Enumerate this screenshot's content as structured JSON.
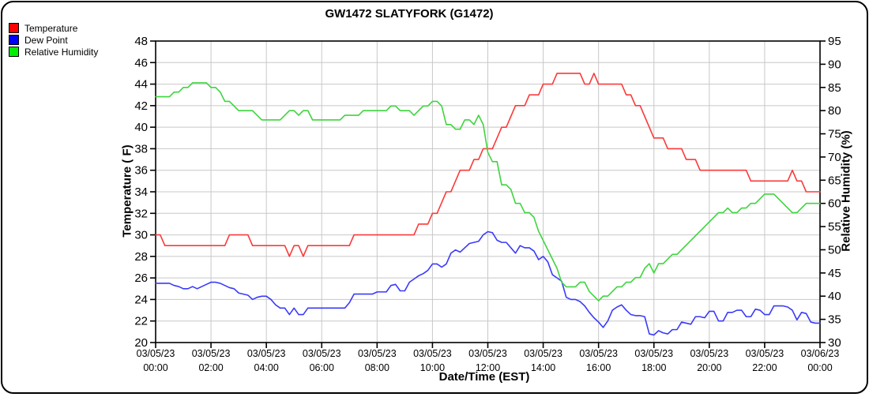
{
  "title": "GW1472 SLATYFORK (G1472)",
  "chart_data": {
    "type": "line",
    "title": "GW1472 SLATYFORK (G1472)",
    "xlabel": "Date/Time (EST)",
    "x_start": "03/05/23 00:00",
    "x_end": "03/06/23 00:00",
    "sample_interval_minutes": 10,
    "grid": true,
    "legend_position": "top-left",
    "left_axis": {
      "label": "Temperature ( F)",
      "min": 20,
      "max": 48,
      "tick_step": 2
    },
    "right_axis": {
      "label": "Relative Humidity (%)",
      "min": 30,
      "max": 95,
      "tick_step": 5
    },
    "x_ticks": [
      {
        "date": "03/05/23",
        "time": "00:00"
      },
      {
        "date": "03/05/23",
        "time": "02:00"
      },
      {
        "date": "03/05/23",
        "time": "04:00"
      },
      {
        "date": "03/05/23",
        "time": "06:00"
      },
      {
        "date": "03/05/23",
        "time": "08:00"
      },
      {
        "date": "03/05/23",
        "time": "10:00"
      },
      {
        "date": "03/05/23",
        "time": "12:00"
      },
      {
        "date": "03/05/23",
        "time": "14:00"
      },
      {
        "date": "03/05/23",
        "time": "16:00"
      },
      {
        "date": "03/05/23",
        "time": "18:00"
      },
      {
        "date": "03/05/23",
        "time": "20:00"
      },
      {
        "date": "03/05/23",
        "time": "22:00"
      },
      {
        "date": "03/06/23",
        "time": "00:00"
      }
    ],
    "series": [
      {
        "name": "Temperature",
        "axis": "left",
        "swatch_color": "#ff0000",
        "line_color": "#fa3a3a",
        "values": [
          30,
          30,
          29,
          29,
          29,
          29,
          29,
          29,
          29,
          29,
          29,
          29,
          29,
          29,
          29,
          29,
          30,
          30,
          30,
          30,
          30,
          29,
          29,
          29,
          29,
          29,
          29,
          29,
          29,
          28,
          29,
          29,
          28,
          29,
          29,
          29,
          29,
          29,
          29,
          29,
          29,
          29,
          29,
          30,
          30,
          30,
          30,
          30,
          30,
          30,
          30,
          30,
          30,
          30,
          30,
          30,
          30,
          31,
          31,
          31,
          32,
          32,
          33,
          34,
          34,
          35,
          36,
          36,
          36,
          37,
          37,
          38,
          38,
          38,
          39,
          40,
          40,
          41,
          42,
          42,
          42,
          43,
          43,
          43,
          44,
          44,
          44,
          45,
          45,
          45,
          45,
          45,
          45,
          44,
          44,
          45,
          44,
          44,
          44,
          44,
          44,
          44,
          43,
          43,
          42,
          42,
          41,
          40,
          39,
          39,
          39,
          38,
          38,
          38,
          38,
          37,
          37,
          37,
          36,
          36,
          36,
          36,
          36,
          36,
          36,
          36,
          36,
          36,
          36,
          35,
          35,
          35,
          35,
          35,
          35,
          35,
          35,
          35,
          36,
          35,
          35,
          34,
          34,
          34,
          34
        ]
      },
      {
        "name": "Dew Point",
        "axis": "left",
        "swatch_color": "#0000ff",
        "line_color": "#3a3afa",
        "values": [
          25.5,
          25.5,
          25.5,
          25.5,
          25.3,
          25.2,
          25.0,
          25.0,
          25.2,
          25.0,
          25.2,
          25.4,
          25.6,
          25.6,
          25.5,
          25.3,
          25.1,
          25.0,
          24.6,
          24.5,
          24.4,
          24.0,
          24.2,
          24.3,
          24.3,
          24.0,
          23.5,
          23.2,
          23.2,
          22.6,
          23.2,
          22.6,
          22.6,
          23.2,
          23.2,
          23.2,
          23.2,
          23.2,
          23.2,
          23.2,
          23.2,
          23.2,
          23.7,
          24.5,
          24.5,
          24.5,
          24.5,
          24.5,
          24.7,
          24.7,
          24.7,
          25.3,
          25.4,
          24.8,
          24.8,
          25.6,
          25.9,
          26.2,
          26.4,
          26.7,
          27.3,
          27.3,
          27.0,
          27.3,
          28.3,
          28.6,
          28.4,
          28.8,
          29.2,
          29.3,
          29.4,
          30.0,
          30.3,
          30.2,
          29.5,
          29.3,
          29.3,
          28.8,
          28.3,
          29.0,
          28.8,
          28.8,
          28.5,
          27.7,
          28.0,
          27.5,
          26.3,
          26.0,
          25.7,
          24.2,
          24.0,
          24.0,
          23.8,
          23.4,
          22.8,
          22.3,
          21.9,
          21.4,
          22.0,
          23.0,
          23.3,
          23.5,
          23.0,
          22.6,
          22.5,
          22.5,
          22.4,
          20.8,
          20.7,
          21.1,
          20.9,
          20.8,
          21.2,
          21.2,
          21.9,
          21.8,
          21.7,
          22.4,
          22.4,
          22.3,
          22.9,
          22.9,
          22.0,
          22.0,
          22.8,
          22.8,
          23.0,
          23.0,
          22.4,
          22.4,
          23.1,
          23.0,
          22.6,
          22.6,
          23.4,
          23.4,
          23.4,
          23.3,
          23.0,
          22.1,
          22.8,
          22.7,
          21.9,
          21.8,
          21.8
        ]
      },
      {
        "name": "Relative Humidity",
        "axis": "right",
        "swatch_color": "#00ee00",
        "line_color": "#3fd43f",
        "values": [
          83,
          83,
          83,
          83,
          84,
          84,
          85,
          85,
          86,
          86,
          86,
          86,
          85,
          85,
          84,
          82,
          82,
          81,
          80,
          80,
          80,
          80,
          79,
          78,
          78,
          78,
          78,
          78,
          79,
          80,
          80,
          79,
          80,
          80,
          78,
          78,
          78,
          78,
          78,
          78,
          78,
          79,
          79,
          79,
          79,
          80,
          80,
          80,
          80,
          80,
          80,
          81,
          81,
          80,
          80,
          80,
          79,
          80,
          81,
          81,
          82,
          82,
          81,
          77,
          77,
          76,
          76,
          78,
          78,
          77,
          79,
          77,
          71,
          69,
          69,
          64,
          64,
          63,
          60,
          60,
          58,
          58,
          57,
          54,
          52,
          50,
          48,
          46,
          43,
          42,
          42,
          42,
          43,
          43,
          41,
          40,
          39,
          40,
          40,
          41,
          42,
          42,
          43,
          43,
          44,
          44,
          46,
          47,
          45,
          47,
          47,
          48,
          49,
          49,
          50,
          51,
          52,
          53,
          54,
          55,
          56,
          57,
          58,
          58,
          59,
          58,
          58,
          59,
          59,
          60,
          60,
          61,
          62,
          62,
          62,
          61,
          60,
          59,
          58,
          58,
          59,
          60,
          60,
          60,
          60
        ]
      }
    ],
    "colors": {
      "grid": "#c8c8c8",
      "axis": "#000000",
      "background": "#ffffff"
    }
  }
}
